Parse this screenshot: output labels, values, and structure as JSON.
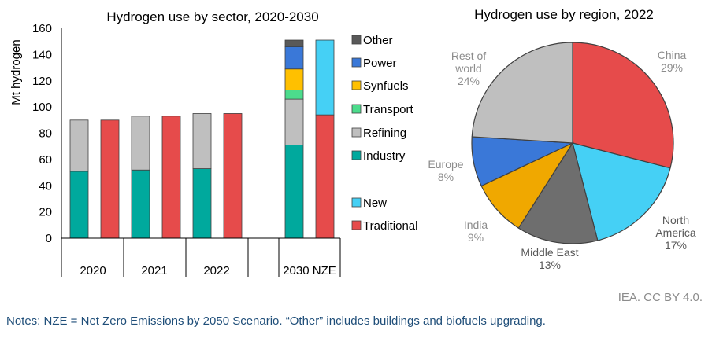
{
  "chart_data": [
    {
      "type": "bar",
      "title": "Hydrogen use by sector, 2020-2030",
      "ylabel": "Mt hydrogen",
      "xlabel": "",
      "ylim": [
        0,
        160
      ],
      "yticks": [
        0,
        20,
        40,
        60,
        80,
        100,
        120,
        140,
        160
      ],
      "stacked": true,
      "groups": [
        "2020",
        "2021",
        "2022",
        "2030 NZE"
      ],
      "legend_position": "right",
      "legend": [
        {
          "name": "Other",
          "color": "#595959"
        },
        {
          "name": "Power",
          "color": "#3a78d8"
        },
        {
          "name": "Synfuels",
          "color": "#ffc000"
        },
        {
          "name": "Transport",
          "color": "#4cdc8c"
        },
        {
          "name": "Refining",
          "color": "#bfbfbf"
        },
        {
          "name": "Industry",
          "color": "#00a99d"
        },
        {
          "name": "New",
          "color": "#45d0f5"
        },
        {
          "name": "Traditional",
          "color": "#e64b4b"
        }
      ],
      "bars": [
        {
          "group": "2020",
          "kind": "sector",
          "segments": {
            "Industry": 51,
            "Refining": 39
          }
        },
        {
          "group": "2020",
          "kind": "type",
          "segments": {
            "Traditional": 90
          }
        },
        {
          "group": "2021",
          "kind": "sector",
          "segments": {
            "Industry": 52,
            "Refining": 41
          }
        },
        {
          "group": "2021",
          "kind": "type",
          "segments": {
            "Traditional": 93
          }
        },
        {
          "group": "2022",
          "kind": "sector",
          "segments": {
            "Industry": 53,
            "Refining": 42
          }
        },
        {
          "group": "2022",
          "kind": "type",
          "segments": {
            "Traditional": 95
          }
        },
        {
          "group": "2030 NZE",
          "kind": "sector",
          "segments": {
            "Industry": 71,
            "Refining": 35,
            "Transport": 7,
            "Synfuels": 16,
            "Power": 17,
            "Other": 5
          }
        },
        {
          "group": "2030 NZE",
          "kind": "type",
          "segments": {
            "Traditional": 94,
            "New": 57
          }
        }
      ]
    },
    {
      "type": "pie",
      "title": "Hydrogen use by region, 2022",
      "slices": [
        {
          "name": "China",
          "value": 29,
          "label": "China\n29%",
          "color": "#e64b4b",
          "label_color": "#8c8c8c"
        },
        {
          "name": "North America",
          "value": 17,
          "label": "North\nAmerica\n17%",
          "color": "#45d0f5",
          "label_color": "#595959"
        },
        {
          "name": "Middle East",
          "value": 13,
          "label": "Middle East\n13%",
          "color": "#6e6e6e",
          "label_color": "#595959"
        },
        {
          "name": "India",
          "value": 9,
          "label": "India\n9%",
          "color": "#f0a800",
          "label_color": "#8c8c8c"
        },
        {
          "name": "Europe",
          "value": 8,
          "label": "Europe\n8%",
          "color": "#3a78d8",
          "label_color": "#8c8c8c"
        },
        {
          "name": "Rest of world",
          "value": 24,
          "label": "Rest of\nworld\n24%",
          "color": "#bfbfbf",
          "label_color": "#8c8c8c"
        }
      ]
    }
  ],
  "footer": {
    "credit": "IEA. CC BY 4.0.",
    "note": "Notes: NZE = Net Zero Emissions by 2050 Scenario. “Other” includes buildings and biofuels upgrading."
  }
}
